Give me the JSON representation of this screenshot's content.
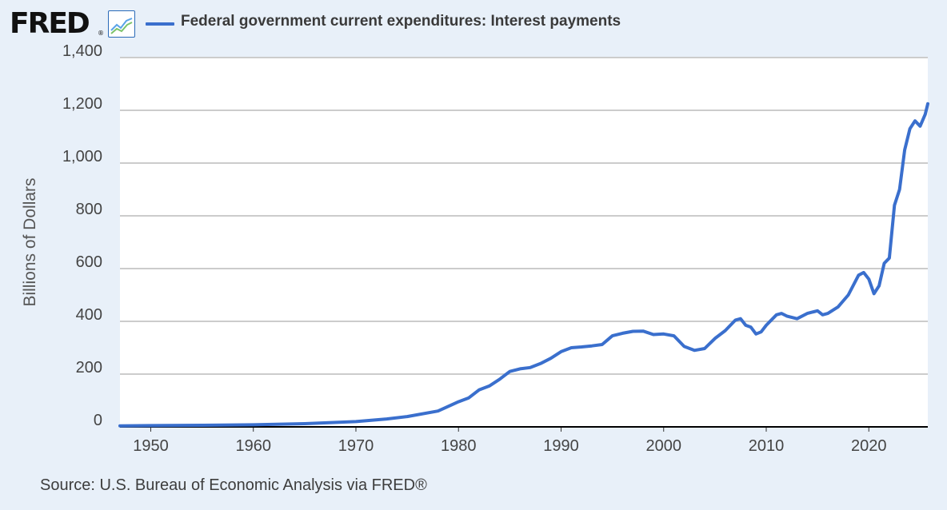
{
  "logo": {
    "text": "FRED",
    "reg": "®",
    "icon": "line-chart-icon"
  },
  "colors": {
    "background": "#e8f0f9",
    "plot_background": "#ffffff",
    "series": "#3a6fcd",
    "grid": "#cccccc",
    "axis": "#000000"
  },
  "source": "Source: U.S. Bureau of Economic Analysis via FRED®",
  "chart_data": {
    "type": "line",
    "title": "",
    "xlabel": "",
    "ylabel": "Billions of Dollars",
    "xlim": [
      1947,
      2025.75
    ],
    "ylim": [
      0,
      1400
    ],
    "x_ticks": [
      1950,
      1960,
      1970,
      1980,
      1990,
      2000,
      2010,
      2020
    ],
    "x_tick_labels": [
      "1950",
      "1960",
      "1970",
      "1980",
      "1990",
      "2000",
      "2010",
      "2020"
    ],
    "y_ticks": [
      0,
      200,
      400,
      600,
      800,
      1000,
      1200,
      1400
    ],
    "y_tick_labels": [
      "0",
      "200",
      "400",
      "600",
      "800",
      "1,000",
      "1,200",
      "1,400"
    ],
    "grid": true,
    "legend_position": "top-left",
    "series": [
      {
        "name": "Federal government current expenditures: Interest payments",
        "x": [
          1947,
          1950,
          1955,
          1960,
          1965,
          1970,
          1973,
          1975,
          1978,
          1980,
          1981,
          1982,
          1983,
          1984,
          1985,
          1986,
          1987,
          1988,
          1989,
          1990,
          1991,
          1992,
          1993,
          1994,
          1995,
          1996,
          1997,
          1998,
          1999,
          2000,
          2001,
          2002,
          2003,
          2004,
          2005,
          2006,
          2007,
          2007.5,
          2008,
          2008.5,
          2009,
          2009.5,
          2010,
          2011,
          2011.5,
          2012,
          2013,
          2014,
          2015,
          2015.5,
          2016,
          2017,
          2018,
          2019,
          2019.5,
          2020,
          2020.5,
          2021,
          2021.5,
          2022,
          2022.5,
          2023,
          2023.5,
          2024,
          2024.5,
          2025,
          2025.5,
          2025.75
        ],
        "y": [
          4,
          5,
          6,
          8,
          12,
          20,
          30,
          39,
          60,
          95,
          110,
          140,
          155,
          180,
          210,
          220,
          225,
          240,
          260,
          285,
          300,
          303,
          307,
          312,
          345,
          355,
          362,
          363,
          350,
          352,
          345,
          305,
          290,
          297,
          335,
          365,
          405,
          410,
          385,
          378,
          352,
          360,
          385,
          425,
          430,
          420,
          410,
          430,
          440,
          425,
          430,
          455,
          500,
          575,
          585,
          560,
          505,
          535,
          620,
          640,
          840,
          900,
          1050,
          1130,
          1160,
          1140,
          1185,
          1225
        ]
      }
    ]
  }
}
